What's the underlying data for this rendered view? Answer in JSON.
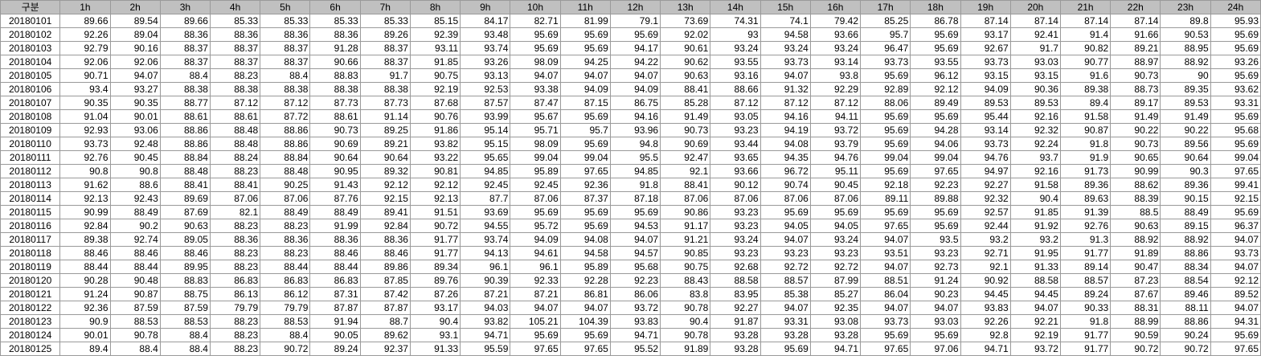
{
  "sheet": {
    "columns": [
      "구분",
      "1h",
      "2h",
      "3h",
      "4h",
      "5h",
      "6h",
      "7h",
      "8h",
      "9h",
      "10h",
      "11h",
      "12h",
      "13h",
      "14h",
      "15h",
      "16h",
      "17h",
      "18h",
      "19h",
      "20h",
      "21h",
      "22h",
      "23h",
      "24h"
    ],
    "rows": [
      [
        "20180101",
        "89.66",
        "89.54",
        "89.66",
        "85.33",
        "85.33",
        "85.33",
        "85.33",
        "85.15",
        "84.17",
        "82.71",
        "81.99",
        "79.1",
        "73.69",
        "74.31",
        "74.1",
        "79.42",
        "85.25",
        "86.78",
        "87.14",
        "87.14",
        "87.14",
        "87.14",
        "89.8",
        "95.93"
      ],
      [
        "20180102",
        "92.26",
        "89.04",
        "88.36",
        "88.36",
        "88.36",
        "88.36",
        "89.26",
        "92.39",
        "93.48",
        "95.69",
        "95.69",
        "95.69",
        "92.02",
        "93",
        "94.58",
        "93.66",
        "95.7",
        "95.69",
        "93.17",
        "92.41",
        "91.4",
        "91.66",
        "90.53",
        "95.69"
      ],
      [
        "20180103",
        "92.79",
        "90.16",
        "88.37",
        "88.37",
        "88.37",
        "91.28",
        "88.37",
        "93.11",
        "93.74",
        "95.69",
        "95.69",
        "94.17",
        "90.61",
        "93.24",
        "93.24",
        "93.24",
        "96.47",
        "95.69",
        "92.67",
        "91.7",
        "90.82",
        "89.21",
        "88.95",
        "95.69"
      ],
      [
        "20180104",
        "92.06",
        "92.06",
        "88.37",
        "88.37",
        "88.37",
        "90.66",
        "88.37",
        "91.85",
        "93.26",
        "98.09",
        "94.25",
        "94.22",
        "90.62",
        "93.55",
        "93.73",
        "93.14",
        "93.73",
        "93.55",
        "93.73",
        "93.03",
        "90.77",
        "88.97",
        "88.92",
        "93.26"
      ],
      [
        "20180105",
        "90.71",
        "94.07",
        "88.4",
        "88.23",
        "88.4",
        "88.83",
        "91.7",
        "90.75",
        "93.13",
        "94.07",
        "94.07",
        "94.07",
        "90.63",
        "93.16",
        "94.07",
        "93.8",
        "95.69",
        "96.12",
        "93.15",
        "93.15",
        "91.6",
        "90.73",
        "90",
        "95.69"
      ],
      [
        "20180106",
        "93.4",
        "93.27",
        "88.38",
        "88.38",
        "88.38",
        "88.38",
        "88.38",
        "92.19",
        "92.53",
        "93.38",
        "94.09",
        "94.09",
        "88.41",
        "88.66",
        "91.32",
        "92.29",
        "92.89",
        "92.12",
        "94.09",
        "90.36",
        "89.38",
        "88.73",
        "89.35",
        "93.62"
      ],
      [
        "20180107",
        "90.35",
        "90.35",
        "88.77",
        "87.12",
        "87.12",
        "87.73",
        "87.73",
        "87.68",
        "87.57",
        "87.47",
        "87.15",
        "86.75",
        "85.28",
        "87.12",
        "87.12",
        "87.12",
        "88.06",
        "89.49",
        "89.53",
        "89.53",
        "89.4",
        "89.17",
        "89.53",
        "93.31"
      ],
      [
        "20180108",
        "91.04",
        "90.01",
        "88.61",
        "88.61",
        "87.72",
        "88.61",
        "91.14",
        "90.76",
        "93.99",
        "95.67",
        "95.69",
        "94.16",
        "91.49",
        "93.05",
        "94.16",
        "94.11",
        "95.69",
        "95.69",
        "95.44",
        "92.16",
        "91.58",
        "91.49",
        "91.49",
        "95.69"
      ],
      [
        "20180109",
        "92.93",
        "93.06",
        "88.86",
        "88.48",
        "88.86",
        "90.73",
        "89.25",
        "91.86",
        "95.14",
        "95.71",
        "95.7",
        "93.96",
        "90.73",
        "93.23",
        "94.19",
        "93.72",
        "95.69",
        "94.28",
        "93.14",
        "92.32",
        "90.87",
        "90.22",
        "90.22",
        "95.68"
      ],
      [
        "20180110",
        "93.73",
        "92.48",
        "88.86",
        "88.48",
        "88.86",
        "90.69",
        "89.21",
        "93.82",
        "95.15",
        "98.09",
        "95.69",
        "94.8",
        "90.69",
        "93.44",
        "94.08",
        "93.79",
        "95.69",
        "94.06",
        "93.73",
        "92.24",
        "91.8",
        "90.73",
        "89.56",
        "95.69"
      ],
      [
        "20180111",
        "92.76",
        "90.45",
        "88.84",
        "88.24",
        "88.84",
        "90.64",
        "90.64",
        "93.22",
        "95.65",
        "99.04",
        "99.04",
        "95.5",
        "92.47",
        "93.65",
        "94.35",
        "94.76",
        "99.04",
        "99.04",
        "94.76",
        "93.7",
        "91.9",
        "90.65",
        "90.64",
        "99.04"
      ],
      [
        "20180112",
        "90.8",
        "90.8",
        "88.48",
        "88.23",
        "88.48",
        "90.95",
        "89.32",
        "90.81",
        "94.85",
        "95.89",
        "97.65",
        "94.85",
        "92.1",
        "93.66",
        "96.72",
        "95.11",
        "95.69",
        "97.65",
        "94.97",
        "92.16",
        "91.73",
        "90.99",
        "90.3",
        "97.65"
      ],
      [
        "20180113",
        "91.62",
        "88.6",
        "88.41",
        "88.41",
        "90.25",
        "91.43",
        "92.12",
        "92.12",
        "92.45",
        "92.45",
        "92.36",
        "91.8",
        "88.41",
        "90.12",
        "90.74",
        "90.45",
        "92.18",
        "92.23",
        "92.27",
        "91.58",
        "89.36",
        "88.62",
        "89.36",
        "99.41"
      ],
      [
        "20180114",
        "92.13",
        "92.43",
        "89.69",
        "87.06",
        "87.06",
        "87.76",
        "92.15",
        "92.13",
        "87.7",
        "87.06",
        "87.37",
        "87.18",
        "87.06",
        "87.06",
        "87.06",
        "87.06",
        "89.11",
        "89.88",
        "92.32",
        "90.4",
        "89.63",
        "88.39",
        "90.15",
        "92.15"
      ],
      [
        "20180115",
        "90.99",
        "88.49",
        "87.69",
        "82.1",
        "88.49",
        "88.49",
        "89.41",
        "91.51",
        "93.69",
        "95.69",
        "95.69",
        "95.69",
        "90.86",
        "93.23",
        "95.69",
        "95.69",
        "95.69",
        "95.69",
        "92.57",
        "91.85",
        "91.39",
        "88.5",
        "88.49",
        "95.69"
      ],
      [
        "20180116",
        "92.84",
        "90.2",
        "90.63",
        "88.23",
        "88.23",
        "91.99",
        "92.84",
        "90.72",
        "94.55",
        "95.72",
        "95.69",
        "94.53",
        "91.17",
        "93.23",
        "94.05",
        "94.05",
        "97.65",
        "95.69",
        "92.44",
        "91.92",
        "92.76",
        "90.63",
        "89.15",
        "96.37"
      ],
      [
        "20180117",
        "89.38",
        "92.74",
        "89.05",
        "88.36",
        "88.36",
        "88.36",
        "88.36",
        "91.77",
        "93.74",
        "94.09",
        "94.08",
        "94.07",
        "91.21",
        "93.24",
        "94.07",
        "93.24",
        "94.07",
        "93.5",
        "93.2",
        "93.2",
        "91.3",
        "88.92",
        "88.92",
        "94.07"
      ],
      [
        "20180118",
        "88.46",
        "88.46",
        "88.46",
        "88.23",
        "88.23",
        "88.46",
        "88.46",
        "91.77",
        "94.13",
        "94.61",
        "94.58",
        "94.57",
        "90.85",
        "93.23",
        "93.23",
        "93.23",
        "93.51",
        "93.23",
        "92.71",
        "91.95",
        "91.77",
        "91.89",
        "88.86",
        "93.73"
      ],
      [
        "20180119",
        "88.44",
        "88.44",
        "89.95",
        "88.23",
        "88.44",
        "88.44",
        "89.86",
        "89.34",
        "96.1",
        "96.1",
        "95.89",
        "95.68",
        "90.75",
        "92.68",
        "92.72",
        "92.72",
        "94.07",
        "92.73",
        "92.1",
        "91.33",
        "89.14",
        "90.47",
        "88.34",
        "94.07"
      ],
      [
        "20180120",
        "90.28",
        "90.48",
        "88.83",
        "86.83",
        "86.83",
        "86.83",
        "87.85",
        "89.76",
        "90.39",
        "92.33",
        "92.28",
        "92.23",
        "88.43",
        "88.58",
        "88.57",
        "87.99",
        "88.51",
        "91.24",
        "90.92",
        "88.58",
        "88.57",
        "87.23",
        "88.54",
        "92.12"
      ],
      [
        "20180121",
        "91.24",
        "90.87",
        "88.75",
        "86.13",
        "86.12",
        "87.31",
        "87.42",
        "87.26",
        "87.21",
        "87.21",
        "86.81",
        "86.06",
        "83.8",
        "83.95",
        "85.38",
        "85.27",
        "86.04",
        "90.23",
        "94.45",
        "94.45",
        "89.24",
        "87.67",
        "89.46",
        "89.52"
      ],
      [
        "20180122",
        "92.36",
        "87.59",
        "87.59",
        "79.79",
        "79.79",
        "87.87",
        "87.87",
        "93.17",
        "94.03",
        "94.07",
        "94.07",
        "93.72",
        "90.78",
        "92.27",
        "94.07",
        "92.35",
        "94.07",
        "94.07",
        "93.83",
        "94.07",
        "90.33",
        "88.31",
        "88.11",
        "94.07"
      ],
      [
        "20180123",
        "90.9",
        "88.53",
        "88.53",
        "88.23",
        "88.53",
        "91.94",
        "88.7",
        "90.4",
        "93.82",
        "105.21",
        "104.39",
        "93.83",
        "90.4",
        "91.87",
        "93.31",
        "93.08",
        "93.73",
        "93.03",
        "92.26",
        "92.21",
        "91.8",
        "88.99",
        "88.86",
        "94.31"
      ],
      [
        "20180124",
        "90.01",
        "90.78",
        "88.4",
        "88.23",
        "88.4",
        "90.05",
        "89.62",
        "93.1",
        "94.71",
        "95.69",
        "95.69",
        "94.71",
        "90.78",
        "93.28",
        "93.28",
        "93.28",
        "95.69",
        "95.69",
        "92.8",
        "92.19",
        "91.77",
        "90.59",
        "90.24",
        "95.69"
      ],
      [
        "20180125",
        "89.4",
        "88.4",
        "88.4",
        "88.23",
        "90.72",
        "89.24",
        "92.37",
        "91.33",
        "95.59",
        "97.65",
        "97.65",
        "95.52",
        "91.89",
        "93.28",
        "95.69",
        "94.71",
        "97.65",
        "97.06",
        "94.71",
        "93.72",
        "91.77",
        "90.72",
        "90.72",
        "97.65"
      ]
    ]
  }
}
